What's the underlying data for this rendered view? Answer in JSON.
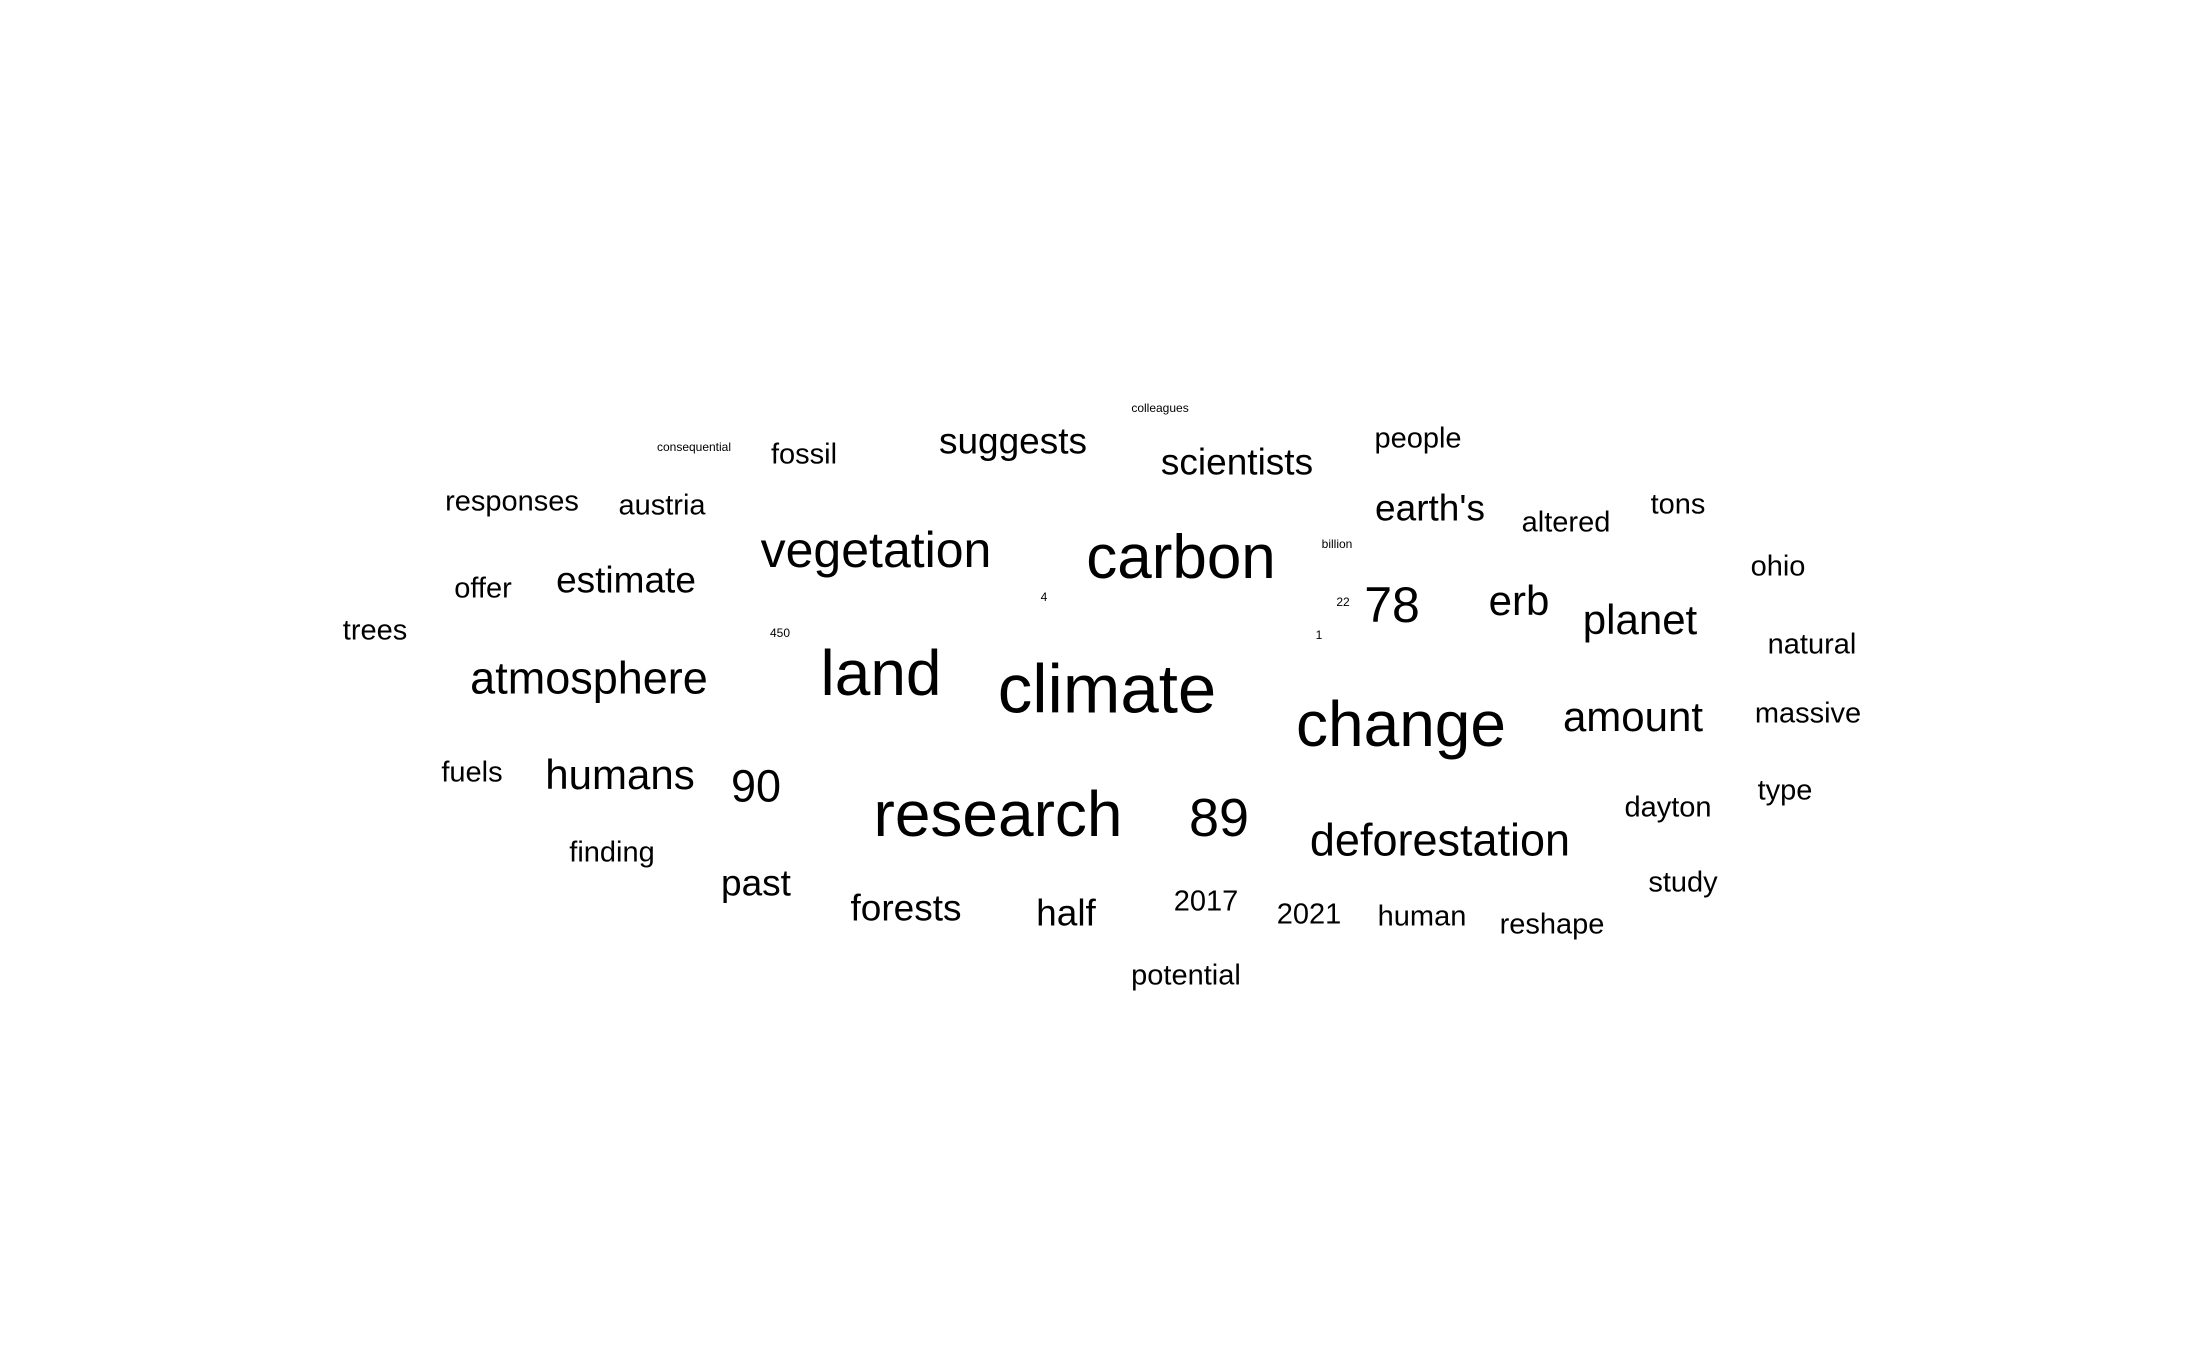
{
  "words": [
    "colleagues",
    "consequential",
    "fossil",
    "suggests",
    "scientists",
    "people",
    "responses",
    "austria",
    "earth's",
    "altered",
    "tons",
    "vegetation",
    "carbon",
    "billion",
    "ohio",
    "offer",
    "estimate",
    "4",
    "22",
    "78",
    "erb",
    "planet",
    "trees",
    "450",
    "1",
    "natural",
    "atmosphere",
    "land",
    "climate",
    "change",
    "amount",
    "massive",
    "fuels",
    "humans",
    "90",
    "research",
    "89",
    "deforestation",
    "dayton",
    "type",
    "finding",
    "past",
    "forests",
    "half",
    "2017",
    "2021",
    "human",
    "reshape",
    "study",
    "potential"
  ],
  "text_color": "#000000",
  "background": "#ffffff"
}
